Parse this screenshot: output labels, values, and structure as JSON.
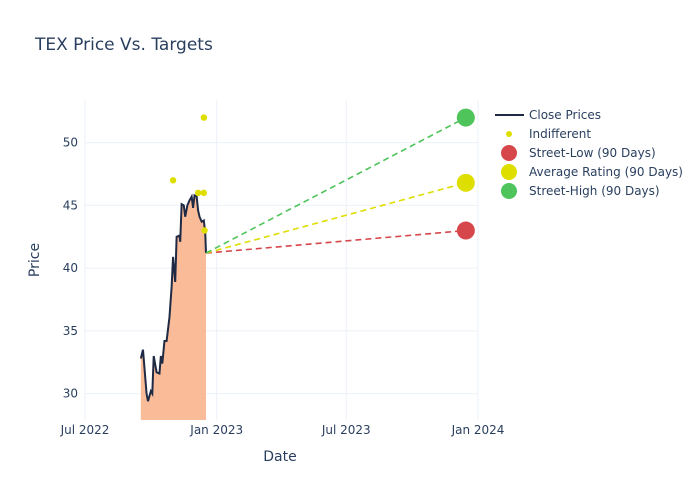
{
  "chart_data": {
    "type": "line",
    "title": "TEX Price Vs. Targets",
    "xlabel": "Date",
    "ylabel": "Price",
    "xlim": [
      "2022-07-01",
      "2024-01-01"
    ],
    "ylim": [
      27.9,
      53.4
    ],
    "grid": true,
    "legend_position": "top-right",
    "x_ticks": [
      {
        "date": "2022-07-01",
        "label": "Jul 2022"
      },
      {
        "date": "2023-01-01",
        "label": "Jan 2023"
      },
      {
        "date": "2023-07-01",
        "label": "Jul 2023"
      },
      {
        "date": "2024-01-01",
        "label": "Jan 2024"
      }
    ],
    "y_ticks": [
      30,
      35,
      40,
      45,
      50
    ],
    "colors": {
      "close": "#1f2a44",
      "fill": "#f9b48e",
      "low": "#d6474b",
      "avg": "#dede00",
      "high": "#4ec45a",
      "indifferent": "#dede00"
    },
    "series": [
      {
        "name": "Close Prices",
        "x": [
          "2022-09-17",
          "2022-09-20",
          "2022-09-25",
          "2022-09-27",
          "2022-10-01",
          "2022-10-03",
          "2022-10-05",
          "2022-10-09",
          "2022-10-13",
          "2022-10-15",
          "2022-10-17",
          "2022-10-20",
          "2022-10-23",
          "2022-10-27",
          "2022-10-30",
          "2022-11-01",
          "2022-11-04",
          "2022-11-06",
          "2022-11-10",
          "2022-11-11",
          "2022-11-13",
          "2022-11-16",
          "2022-11-18",
          "2022-11-21",
          "2022-11-24",
          "2022-11-27",
          "2022-11-29",
          "2022-12-01",
          "2022-12-04",
          "2022-12-06",
          "2022-12-08",
          "2022-12-11",
          "2022-12-14",
          "2022-12-16",
          "2022-12-17"
        ],
        "y": [
          32.8,
          33.5,
          30.0,
          29.4,
          30.2,
          30.0,
          33.0,
          31.7,
          31.6,
          33.0,
          32.4,
          34.2,
          34.2,
          36.1,
          38.5,
          40.9,
          38.9,
          42.5,
          42.6,
          42.1,
          45.1,
          45.0,
          44.1,
          45.0,
          45.4,
          45.7,
          44.8,
          45.8,
          45.7,
          44.6,
          44.1,
          43.7,
          43.8,
          42.8,
          41.2
        ]
      },
      {
        "name": "Indifferent",
        "x": [
          "2022-11-01",
          "2022-12-06",
          "2022-12-14",
          "2022-12-14",
          "2022-12-15"
        ],
        "y": [
          47,
          46,
          46,
          52,
          43
        ]
      },
      {
        "name": "Street-Low (90 Days)",
        "x": [
          "2022-12-17",
          "2023-12-15"
        ],
        "y": [
          41.2,
          43
        ]
      },
      {
        "name": "Average Rating (90 Days)",
        "x": [
          "2022-12-17",
          "2023-12-15"
        ],
        "y": [
          41.2,
          46.8
        ]
      },
      {
        "name": "Street-High (90 Days)",
        "x": [
          "2022-12-17",
          "2023-12-15"
        ],
        "y": [
          41.2,
          52
        ]
      }
    ]
  }
}
